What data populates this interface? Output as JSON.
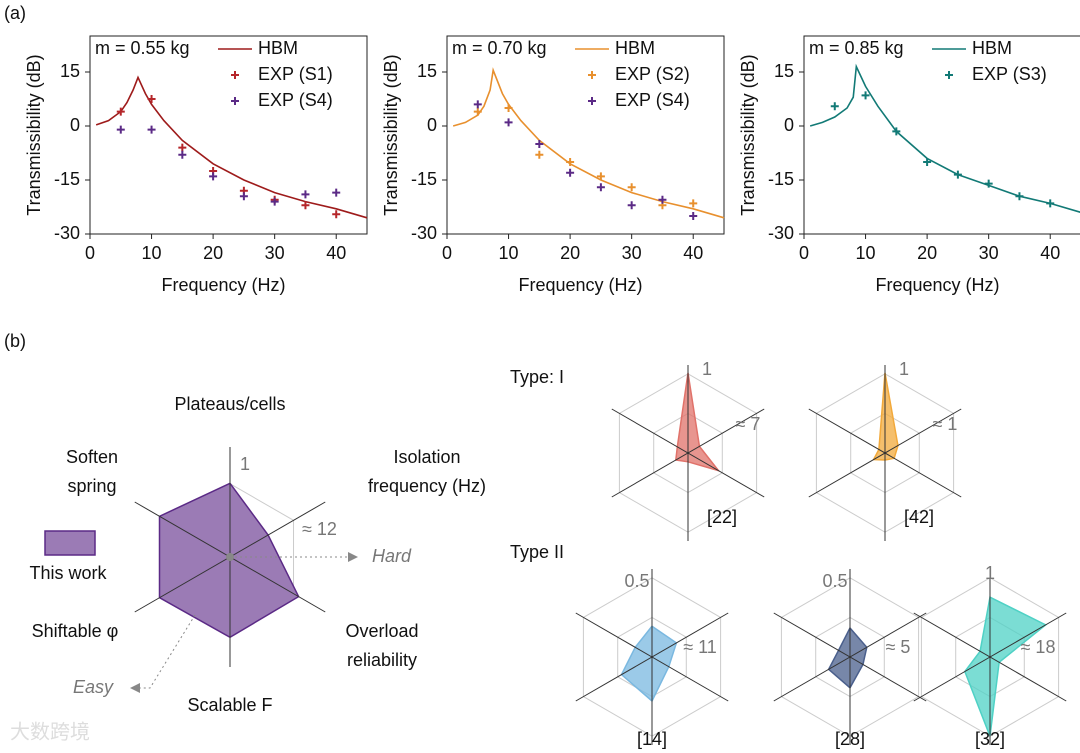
{
  "panel_labels": [
    "(a)",
    "(b)"
  ],
  "chart_data": [
    {
      "type": "line",
      "title": "m = 0.55 kg",
      "xlabel": "Frequency (Hz)",
      "ylabel": "Transmissibility (dB)",
      "xlim": [
        0,
        45
      ],
      "xticks": [
        0,
        10,
        20,
        30,
        40
      ],
      "ylim": [
        -30,
        25
      ],
      "yticks": [
        -30,
        -15,
        0,
        15
      ],
      "series": [
        {
          "name": "HBM",
          "style": "line",
          "color": "#9e1b1b",
          "x": [
            1,
            3,
            5,
            6,
            7,
            7.8,
            9,
            10,
            12,
            15,
            20,
            25,
            30,
            35,
            40,
            45
          ],
          "values": [
            0.3,
            1.5,
            4,
            6.5,
            10,
            13.5,
            9,
            6,
            1.5,
            -4,
            -10.5,
            -15,
            -18.5,
            -21,
            -23,
            -25.5
          ]
        },
        {
          "name": "EXP (S1)",
          "style": "plus",
          "color": "#b5262a",
          "x": [
            5,
            10,
            15,
            20,
            25,
            30,
            35,
            40
          ],
          "values": [
            4,
            7.5,
            -6,
            -12.5,
            -18,
            -20.5,
            -22,
            -24.5
          ]
        },
        {
          "name": "EXP (S4)",
          "style": "plus",
          "color": "#5b2a86",
          "x": [
            5,
            10,
            15,
            20,
            25,
            30,
            35,
            40
          ],
          "values": [
            -1,
            -1,
            -8,
            -14,
            -19.5,
            -21,
            -19,
            -18.5
          ]
        }
      ]
    },
    {
      "type": "line",
      "title": "m = 0.70 kg",
      "xlabel": "Frequency (Hz)",
      "ylabel": "Transmissibility (dB)",
      "xlim": [
        0,
        45
      ],
      "xticks": [
        0,
        10,
        20,
        30,
        40
      ],
      "ylim": [
        -30,
        25
      ],
      "yticks": [
        -30,
        -15,
        0,
        15
      ],
      "series": [
        {
          "name": "HBM",
          "style": "line",
          "color": "#e8902e",
          "x": [
            1,
            3,
            5,
            6,
            7,
            7.5,
            9,
            10,
            12,
            15,
            20,
            25,
            30,
            35,
            40,
            45
          ],
          "values": [
            0,
            1,
            3,
            5.5,
            10,
            15.5,
            9,
            6,
            1.5,
            -4,
            -10.5,
            -15,
            -18.5,
            -21,
            -23,
            -25.5
          ]
        },
        {
          "name": "EXP (S2)",
          "style": "plus",
          "color": "#e8902e",
          "x": [
            5,
            10,
            15,
            20,
            25,
            30,
            35,
            40
          ],
          "values": [
            4,
            5,
            -8,
            -10,
            -14,
            -17,
            -22,
            -21.5
          ]
        },
        {
          "name": "EXP (S4)",
          "style": "plus",
          "color": "#5b2a86",
          "x": [
            5,
            10,
            15,
            20,
            25,
            30,
            35,
            40
          ],
          "values": [
            6,
            1,
            -5,
            -13,
            -17,
            -22,
            -20.5,
            -25
          ]
        }
      ]
    },
    {
      "type": "line",
      "title": "m = 0.85 kg",
      "xlabel": "Frequency (Hz)",
      "ylabel": "Transmissibility (dB)",
      "xlim": [
        0,
        45
      ],
      "xticks": [
        0,
        10,
        20,
        30,
        40
      ],
      "ylim": [
        -30,
        25
      ],
      "yticks": [
        -30,
        -15,
        0,
        15
      ],
      "series": [
        {
          "name": "HBM",
          "style": "line",
          "color": "#127a76",
          "x": [
            1,
            3,
            5,
            7,
            8,
            8.5,
            10,
            12,
            15,
            20,
            25,
            30,
            35,
            40,
            45
          ],
          "values": [
            0,
            1,
            2.5,
            5,
            8,
            16.5,
            11,
            5.5,
            -1.5,
            -9,
            -13.5,
            -16.5,
            -19.5,
            -21.5,
            -24
          ]
        },
        {
          "name": "EXP (S3)",
          "style": "plus",
          "color": "#127a76",
          "x": [
            5,
            10,
            15,
            20,
            25,
            30,
            35,
            40
          ],
          "values": [
            5.5,
            8.5,
            -1.5,
            -10,
            -13.5,
            -16,
            -19.5,
            -21.5
          ]
        }
      ]
    },
    {
      "type": "radar",
      "axes": [
        [
          "Plateaus/cells"
        ],
        [
          "Isolation",
          "frequency (Hz)"
        ],
        [
          "Overload",
          "reliability"
        ],
        [
          "Scalable F"
        ],
        [
          "Shiftable φ"
        ],
        [
          "Soften",
          "spring"
        ]
      ],
      "rlim": [
        0,
        1
      ],
      "scale_label": "1",
      "freq_label": "≈ 12",
      "hard_label": "Hard",
      "easy_label": "Easy",
      "series": [
        {
          "name": "This work",
          "color": "#9b7bb5",
          "values": [
            0.67,
            0.4,
            0.72,
            0.73,
            0.74,
            0.74
          ]
        }
      ]
    },
    {
      "type": "radar",
      "rlim": [
        0,
        1
      ],
      "scale_label": "1",
      "freq_label": "≈ 7",
      "ref": "[22]",
      "series": [
        {
          "color": "#e0726a",
          "values": [
            0.91,
            0.15,
            0.4,
            0.1,
            0.16,
            0.14
          ]
        }
      ]
    },
    {
      "type": "radar",
      "rlim": [
        0,
        1
      ],
      "scale_label": "1",
      "freq_label": "≈ 1",
      "ref": "[42]",
      "series": [
        {
          "color": "#f2a93b",
          "values": [
            0.91,
            0.17,
            0.12,
            0.08,
            0.15,
            0.08
          ]
        }
      ]
    },
    {
      "type": "radar",
      "rlim": [
        0,
        1
      ],
      "scale_label": "0.5",
      "freq_label": "≈ 11",
      "ref": "[14]",
      "series": [
        {
          "color": "#7ab8e0",
          "values": [
            0.35,
            0.32,
            0.22,
            0.5,
            0.4,
            0.22
          ]
        }
      ]
    },
    {
      "type": "radar",
      "rlim": [
        0,
        1
      ],
      "scale_label": "0.5",
      "freq_label": "≈ 5",
      "ref": "[28]",
      "series": [
        {
          "color": "#4a5f8c",
          "values": [
            0.33,
            0.22,
            0.17,
            0.35,
            0.28,
            0.15
          ]
        }
      ]
    },
    {
      "type": "radar",
      "rlim": [
        0,
        1
      ],
      "scale_label": "1",
      "freq_label": "≈ 18",
      "ref": "[32]",
      "series": [
        {
          "color": "#4fd1c5",
          "values": [
            0.68,
            0.73,
            0.12,
            0.9,
            0.33,
            0.13
          ]
        }
      ]
    }
  ],
  "radar_groups": [
    "Type: I",
    "Type II"
  ],
  "watermark": "大数跨境"
}
